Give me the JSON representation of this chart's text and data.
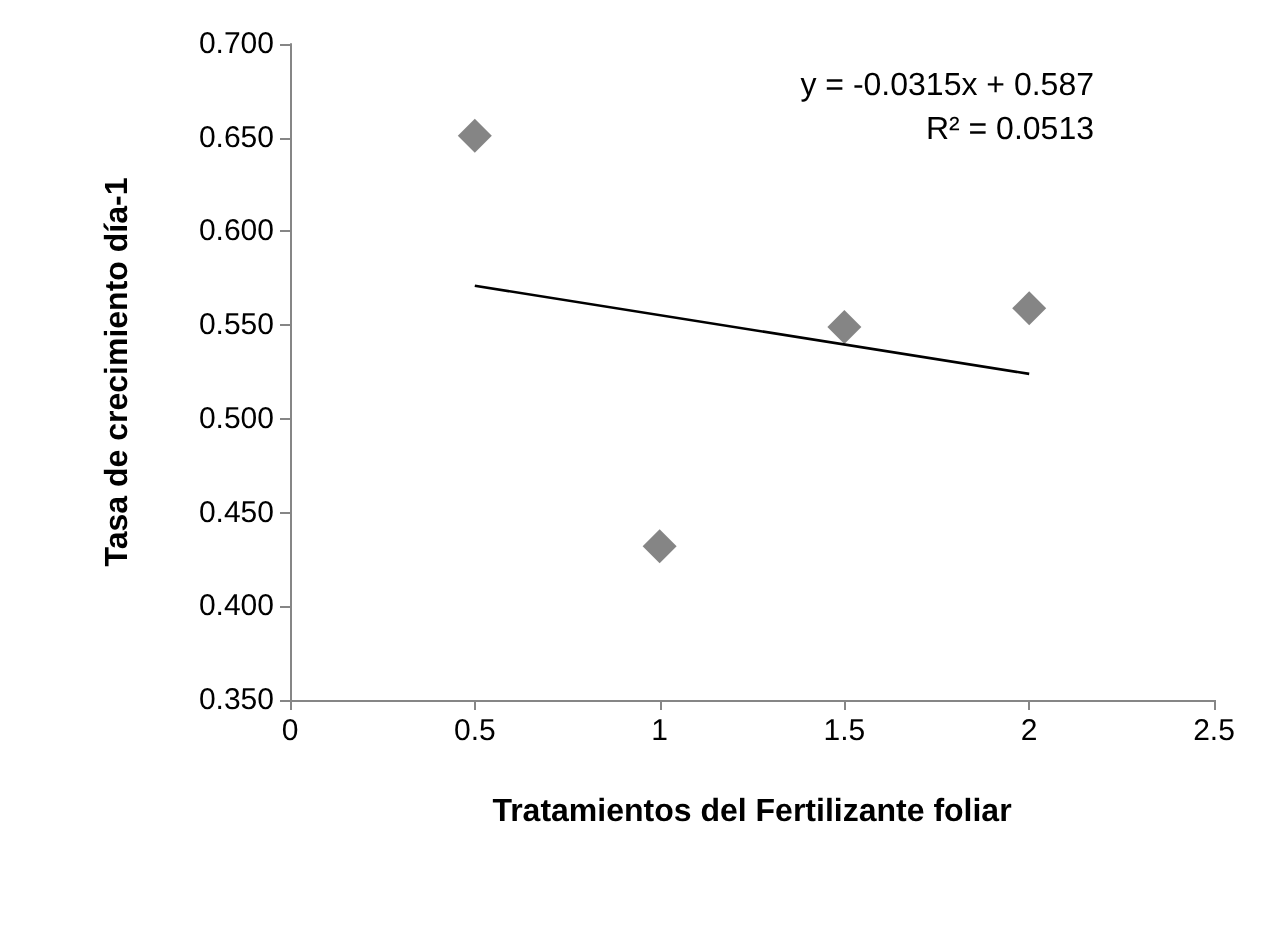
{
  "chart_data": {
    "type": "scatter",
    "xlabel": "Tratamientos del Fertilizante foliar",
    "ylabel": "Tasa de crecimiento día-1",
    "x": [
      0.5,
      1,
      1.5,
      2
    ],
    "series": [
      {
        "color": "#666666",
        "marker": "diamond",
        "values": [
          0.651,
          0.432,
          0.549,
          0.559
        ]
      },
      {
        "type": "line",
        "color": "#000000",
        "marker": "none",
        "x": [
          0.5,
          2
        ],
        "values": [
          0.571,
          0.524
        ]
      }
    ],
    "annotations": [
      "y = -0.0315x + 0.587",
      "R² = 0.0513"
    ],
    "xlim": [
      0,
      2.5
    ],
    "xticks": [
      0,
      0.5,
      1,
      1.5,
      2,
      2.5
    ],
    "ylim": [
      0.35,
      0.7
    ],
    "yticks": [
      {
        "value": 0.35,
        "label": "0.350"
      },
      {
        "value": 0.4,
        "label": "0.400"
      },
      {
        "value": 0.45,
        "label": "0.450"
      },
      {
        "value": 0.5,
        "label": "0.500"
      },
      {
        "value": 0.55,
        "label": "0.550"
      },
      {
        "value": 0.6,
        "label": "0.600"
      },
      {
        "value": 0.65,
        "label": "0.650"
      },
      {
        "value": 0.7,
        "label": "0.700"
      }
    ],
    "grid": false
  }
}
